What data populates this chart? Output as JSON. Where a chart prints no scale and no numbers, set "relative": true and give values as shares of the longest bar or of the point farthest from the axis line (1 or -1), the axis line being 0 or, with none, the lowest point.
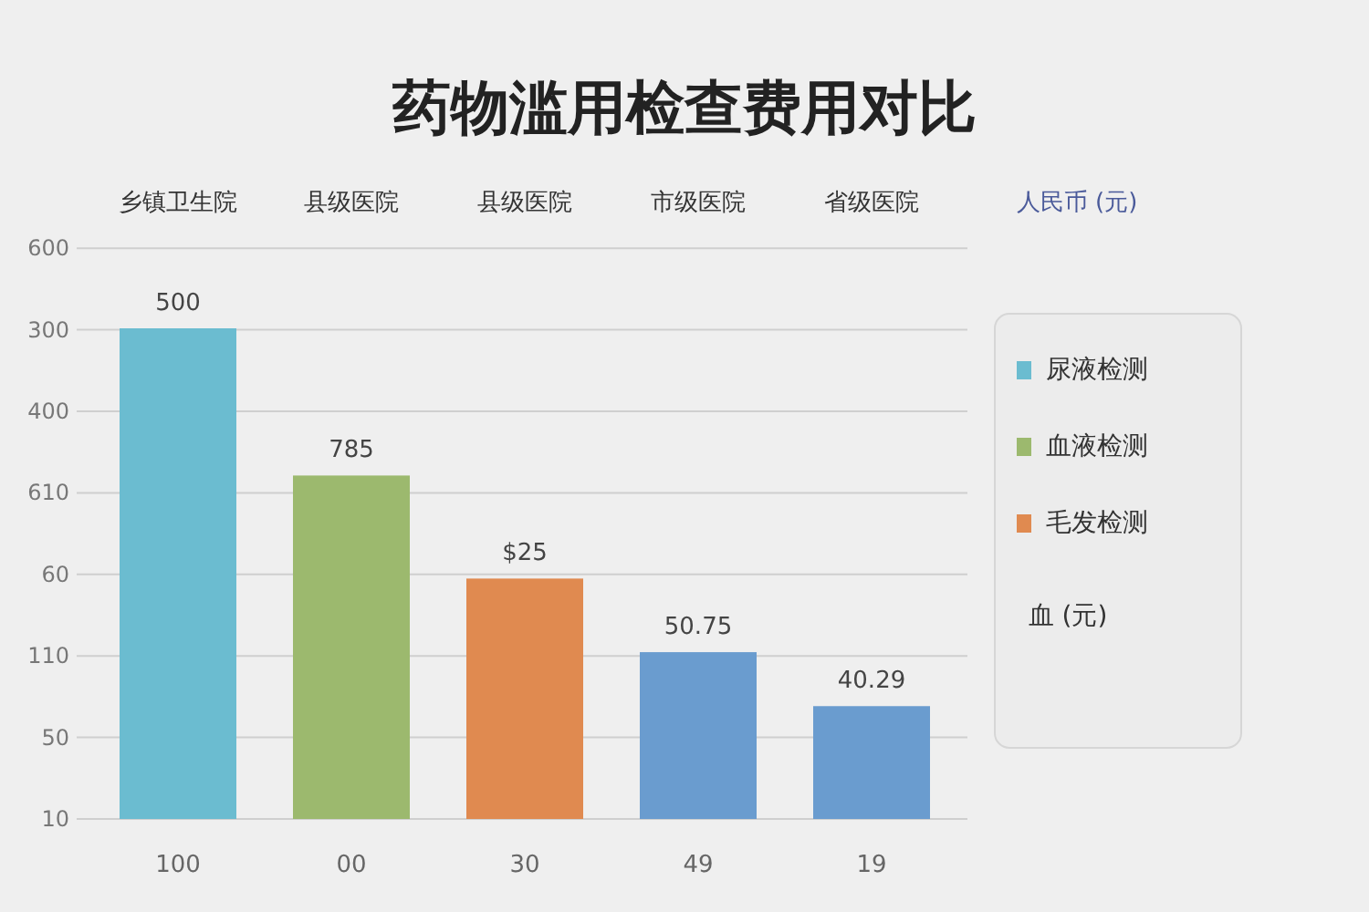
{
  "chart_data": {
    "type": "bar",
    "title": "药物滥用检查费用对比",
    "relative": true,
    "categories": [
      "乡镇卫生院",
      "县级医院",
      "县级医院",
      "市级医院",
      "省级医院"
    ],
    "series": [
      {
        "name": "尿液检测",
        "color": "#6bbcd0",
        "values": [
          1,
          null,
          null,
          null,
          null
        ]
      },
      {
        "name": "血液检测",
        "color": "#9cb96e",
        "values": [
          null,
          0.7,
          null,
          null,
          null
        ]
      },
      {
        "name": "毛发检测",
        "color": "#e08a50",
        "values": [
          null,
          null,
          0.49,
          null,
          null
        ]
      },
      {
        "color": "#6a9ccf",
        "values": [
          null,
          null,
          null,
          0.34,
          0.23
        ]
      }
    ],
    "grid": "y",
    "legend": "right",
    "annotations": [
      "人民币 (元)",
      "500",
      "785",
      "$25",
      "50.75",
      "40.29",
      "10",
      "50",
      "110",
      "60",
      "610",
      "400",
      "300",
      "600",
      "100",
      "00",
      "30",
      "49",
      "19",
      "血 (元)"
    ]
  }
}
